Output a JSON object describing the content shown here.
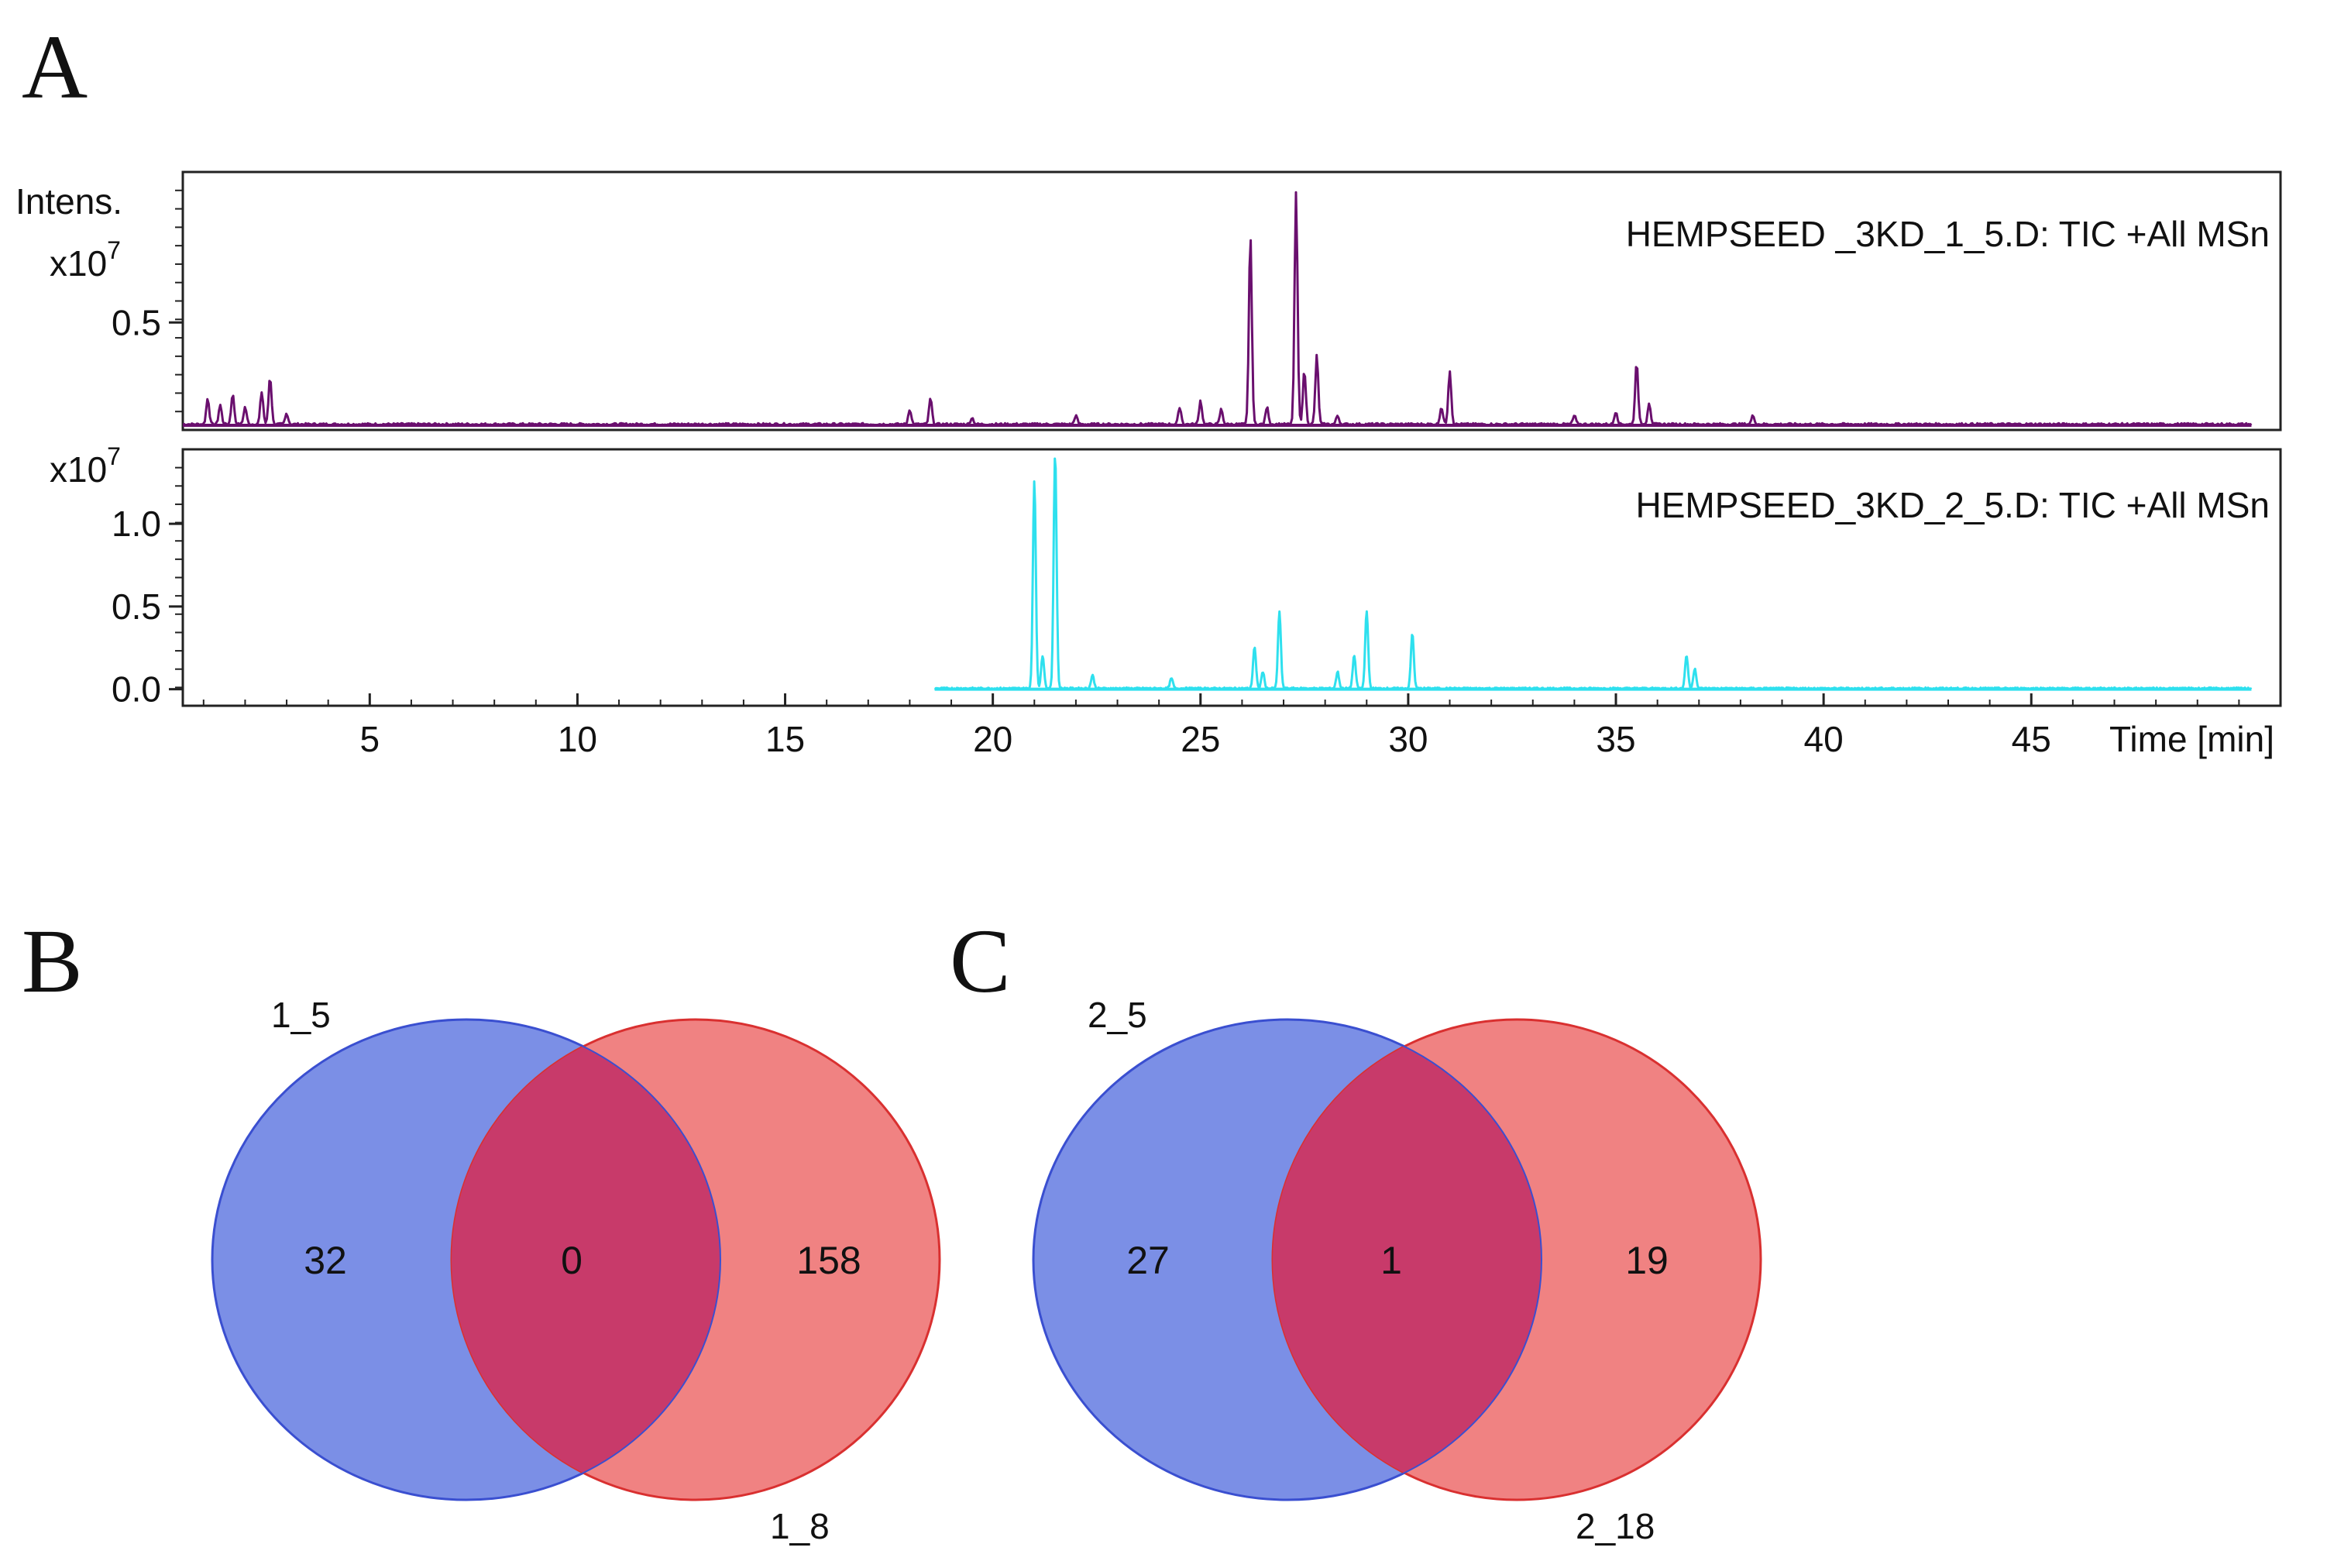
{
  "panels": {
    "a": "A",
    "b": "B",
    "c": "C"
  },
  "chart_data": [
    {
      "type": "line",
      "panel": "A",
      "x_axis": {
        "label": "Time [min]",
        "range": [
          0.5,
          51
        ],
        "ticks": [
          5,
          10,
          15,
          20,
          25,
          30,
          35,
          40,
          45
        ],
        "tick_labels": [
          "5",
          "10",
          "15",
          "20",
          "25",
          "30",
          "35",
          "40",
          "45"
        ]
      },
      "y_axis_label": "Intens.",
      "traces": [
        {
          "name": "HEMPSEED _3KD_1_5.D: TIC +All MSn",
          "color": "#6a0f6e",
          "ylim": [
            0,
            1.2
          ],
          "multiplier": "x10",
          "multiplier_exp": "7",
          "yticks": [
            0.5
          ],
          "ytick_labels": [
            "0.5"
          ],
          "peaks": [
            {
              "x": 1.1,
              "y": 0.12
            },
            {
              "x": 1.4,
              "y": 0.09
            },
            {
              "x": 1.7,
              "y": 0.14
            },
            {
              "x": 2.0,
              "y": 0.08
            },
            {
              "x": 2.4,
              "y": 0.15
            },
            {
              "x": 2.6,
              "y": 0.22
            },
            {
              "x": 3.0,
              "y": 0.05
            },
            {
              "x": 18.0,
              "y": 0.07
            },
            {
              "x": 18.5,
              "y": 0.12
            },
            {
              "x": 19.5,
              "y": 0.03
            },
            {
              "x": 22.0,
              "y": 0.04
            },
            {
              "x": 24.5,
              "y": 0.08
            },
            {
              "x": 25.0,
              "y": 0.11
            },
            {
              "x": 25.5,
              "y": 0.07
            },
            {
              "x": 26.2,
              "y": 0.88
            },
            {
              "x": 26.6,
              "y": 0.08
            },
            {
              "x": 27.3,
              "y": 1.08
            },
            {
              "x": 27.5,
              "y": 0.25
            },
            {
              "x": 27.8,
              "y": 0.32
            },
            {
              "x": 28.3,
              "y": 0.04
            },
            {
              "x": 30.8,
              "y": 0.08
            },
            {
              "x": 31.0,
              "y": 0.25
            },
            {
              "x": 34.0,
              "y": 0.04
            },
            {
              "x": 35.0,
              "y": 0.06
            },
            {
              "x": 35.5,
              "y": 0.29
            },
            {
              "x": 35.8,
              "y": 0.1
            },
            {
              "x": 38.3,
              "y": 0.04
            }
          ],
          "x_range": [
            0.5,
            50.3
          ]
        },
        {
          "name": "HEMPSEED_3KD_2_5.D: TIC +All MSn",
          "color": "#2ee0ee",
          "ylim": [
            -0.1,
            1.45
          ],
          "multiplier": "x10",
          "multiplier_exp": "7",
          "yticks": [
            0.0,
            0.5,
            1.0
          ],
          "ytick_labels": [
            "0.0",
            "0.5",
            "1.0"
          ],
          "peaks": [
            {
              "x": 21.0,
              "y": 1.25
            },
            {
              "x": 21.2,
              "y": 0.2
            },
            {
              "x": 21.5,
              "y": 1.42
            },
            {
              "x": 22.4,
              "y": 0.08
            },
            {
              "x": 24.3,
              "y": 0.06
            },
            {
              "x": 26.3,
              "y": 0.25
            },
            {
              "x": 26.5,
              "y": 0.1
            },
            {
              "x": 26.9,
              "y": 0.46
            },
            {
              "x": 28.3,
              "y": 0.1
            },
            {
              "x": 28.7,
              "y": 0.2
            },
            {
              "x": 29.0,
              "y": 0.47
            },
            {
              "x": 30.1,
              "y": 0.33
            },
            {
              "x": 36.7,
              "y": 0.2
            },
            {
              "x": 36.9,
              "y": 0.12
            }
          ],
          "x_range": [
            18.6,
            50.3
          ]
        }
      ]
    },
    {
      "type": "venn",
      "panel": "B",
      "sets": [
        {
          "name": "1_5",
          "only": 32,
          "color": "#7b8fe6",
          "edge": "#3a4fd0"
        },
        {
          "name": "1_8",
          "only": 158,
          "color": "#f08282",
          "edge": "#d93030"
        }
      ],
      "intersection": 0,
      "intersection_color": "#c83a6a"
    },
    {
      "type": "venn",
      "panel": "C",
      "sets": [
        {
          "name": "2_5",
          "only": 27,
          "color": "#7b8fe6",
          "edge": "#3a4fd0"
        },
        {
          "name": "2_18",
          "only": 19,
          "color": "#f08282",
          "edge": "#d93030"
        }
      ],
      "intersection": 1,
      "intersection_color": "#c83a6a"
    }
  ]
}
